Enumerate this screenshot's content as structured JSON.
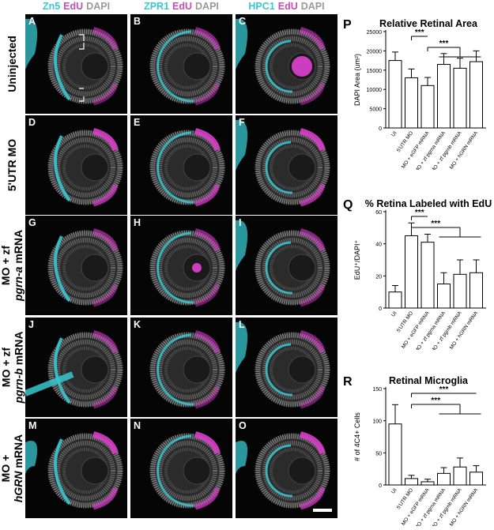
{
  "columns": [
    {
      "parts": [
        {
          "text": "Zn5",
          "color": "cyan"
        },
        {
          "text": "EdU",
          "color": "mag"
        },
        {
          "text": "DAPI",
          "color": "gry"
        }
      ]
    },
    {
      "parts": [
        {
          "text": "ZPR1",
          "color": "cyan"
        },
        {
          "text": "EdU",
          "color": "mag"
        },
        {
          "text": "DAPI",
          "color": "gry"
        }
      ]
    },
    {
      "parts": [
        {
          "text": "HPC1",
          "color": "cyan"
        },
        {
          "text": "EdU",
          "color": "mag"
        },
        {
          "text": "DAPI",
          "color": "gry"
        }
      ]
    }
  ],
  "rows": [
    {
      "lines": [
        {
          "segs": [
            {
              "t": "Uninjected",
              "i": false
            }
          ]
        }
      ]
    },
    {
      "lines": [
        {
          "segs": [
            {
              "t": "5'UTR MO",
              "i": false
            }
          ]
        }
      ]
    },
    {
      "lines": [
        {
          "segs": [
            {
              "t": "MO + zf",
              "i": false
            }
          ]
        },
        {
          "segs": [
            {
              "t": "pgrn-a",
              "i": true
            },
            {
              "t": " mRNA",
              "i": false
            }
          ]
        }
      ]
    },
    {
      "lines": [
        {
          "segs": [
            {
              "t": "MO + zf",
              "i": false
            }
          ]
        },
        {
          "segs": [
            {
              "t": "pgrn-b",
              "i": true
            },
            {
              "t": " mRNA",
              "i": false
            }
          ]
        }
      ]
    },
    {
      "lines": [
        {
          "segs": [
            {
              "t": "MO +",
              "i": false
            }
          ]
        },
        {
          "segs": [
            {
              "t": "hGRN",
              "i": true
            },
            {
              "t": " mRNA",
              "i": false
            }
          ]
        }
      ]
    }
  ],
  "panel_letters": [
    "A",
    "B",
    "C",
    "D",
    "E",
    "F",
    "G",
    "H",
    "I",
    "J",
    "K",
    "L",
    "M",
    "N",
    "O"
  ],
  "colors": {
    "cyan": "#38c7cf",
    "magenta": "#d63fc8",
    "gray": "#9a9a9a",
    "bar_fill": "#ffffff",
    "axis": "#000000"
  },
  "chart_data": [
    {
      "panel_letter": "P",
      "type": "bar",
      "title": "Relative Retinal Area",
      "ylabel": "DAPI Area (um²)",
      "ylim": [
        0,
        25000
      ],
      "yticks": [
        0,
        5000,
        10000,
        15000,
        20000,
        25000
      ],
      "categories": [
        "UI",
        "5'UTR MO",
        "MO + eGFP mRNA",
        "MO + zf pgrna mRNA",
        "MO + zf pgrnb mRNA",
        "MO + hGRN mRNA"
      ],
      "values": [
        17500,
        13000,
        11000,
        16500,
        15500,
        17200
      ],
      "errors": [
        2200,
        2300,
        2100,
        2800,
        2600,
        2800
      ],
      "significance": [
        {
          "label": "***",
          "from": 1,
          "to": 2
        },
        {
          "label": "***",
          "from": 2,
          "to": [
            3,
            5
          ]
        }
      ]
    },
    {
      "panel_letter": "Q",
      "type": "bar",
      "title": "% Retina Labeled with EdU",
      "ylabel": "EdU⁺/DAPI⁺",
      "ylim": [
        0,
        60
      ],
      "yticks": [
        0,
        20,
        40,
        60
      ],
      "categories": [
        "UI",
        "5'UTR MO",
        "MO + eGFP mRNA",
        "MO + zf pgrna mRNA",
        "MO + zf pgrnb mRNA",
        "MO + hGRN mRNA"
      ],
      "values": [
        10,
        45,
        41,
        15,
        21,
        22
      ],
      "errors": [
        4,
        8,
        5,
        7,
        9,
        8
      ],
      "significance": [
        {
          "label": "***",
          "from": 1,
          "to": 2
        },
        {
          "label": "***",
          "from": 1,
          "to": [
            3,
            5
          ]
        }
      ]
    },
    {
      "panel_letter": "R",
      "type": "bar",
      "title": "Retinal Microglia",
      "ylabel": "# of 4C4+ Cells",
      "ylim": [
        0,
        150
      ],
      "yticks": [
        0,
        50,
        100,
        150
      ],
      "categories": [
        "UI",
        "5'UTR MO",
        "MO + eGFP mRNA",
        "MO + zf pgrna mRNA",
        "MO + zf pgrnb mRNA",
        "MO + hGRN mRNA"
      ],
      "values": [
        95,
        10,
        5,
        18,
        28,
        20
      ],
      "errors": [
        30,
        5,
        4,
        9,
        14,
        10
      ],
      "significance": [
        {
          "label": "***",
          "from": 1,
          "to": 5
        },
        {
          "label": "***",
          "from": 1,
          "to": [
            3,
            5
          ]
        }
      ]
    }
  ]
}
